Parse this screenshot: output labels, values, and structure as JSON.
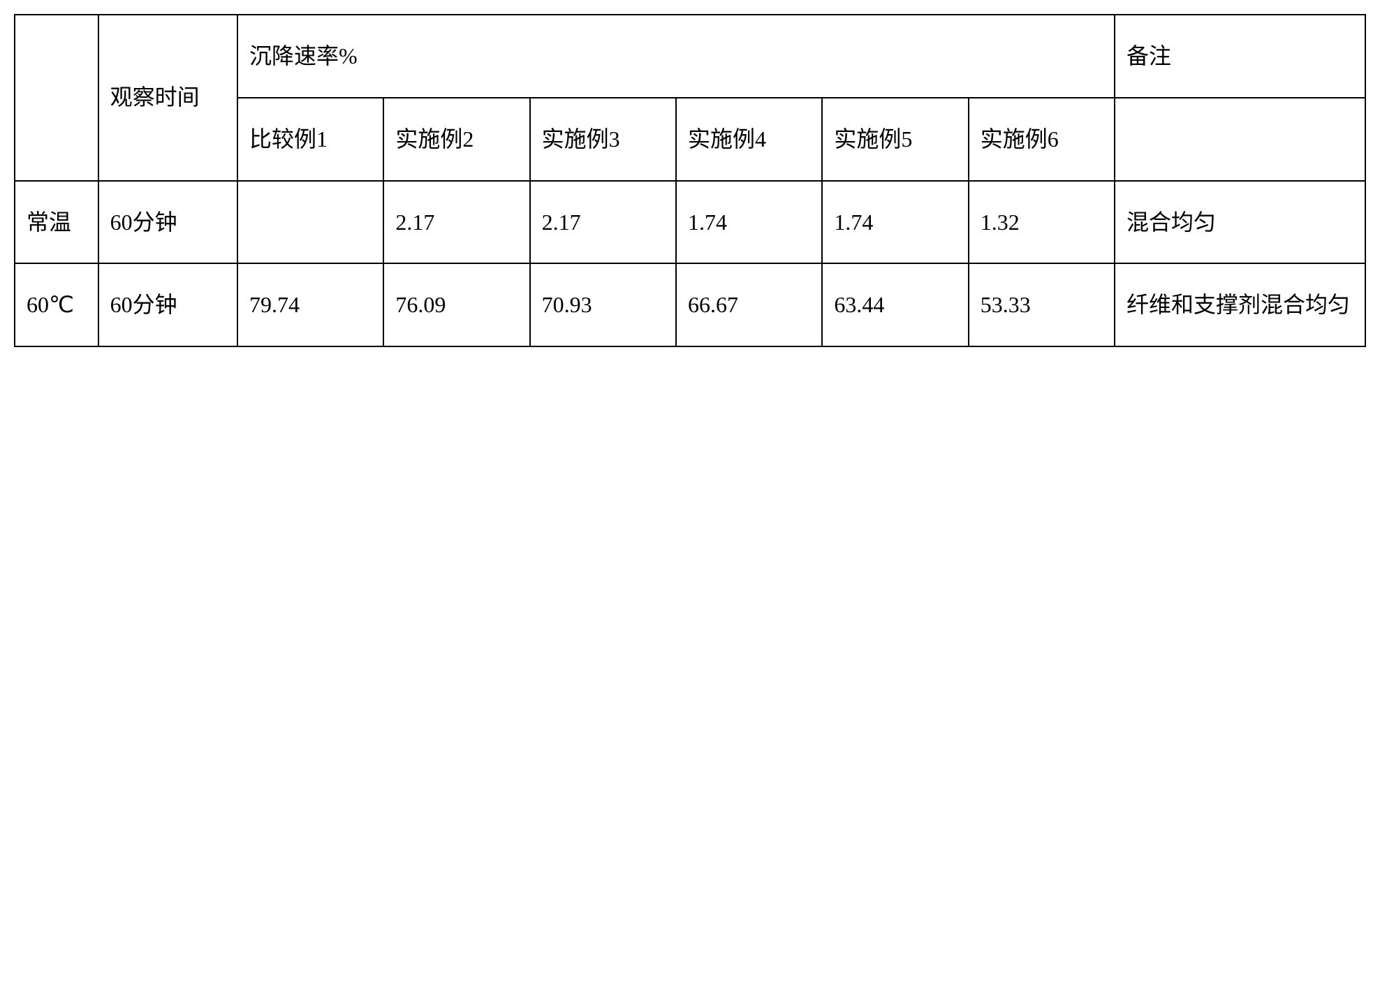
{
  "table": {
    "headers": {
      "blank": "",
      "observation_time": "观察时间",
      "settling_rate": "沉降速率%",
      "notes": "备注",
      "col1": "比较例1",
      "col2": "实施例2",
      "col3": "实施例3",
      "col4": "实施例4",
      "col5": "实施例5",
      "col6": "实施例6"
    },
    "rows": [
      {
        "temp": "常温",
        "time": "60分钟",
        "v1": "",
        "v2": "2.17",
        "v3": "2.17",
        "v4": "1.74",
        "v5": "1.74",
        "v6": "1.32",
        "notes": "混合均匀"
      },
      {
        "temp": "60℃",
        "time": "60分钟",
        "v1": "79.74",
        "v2": "76.09",
        "v3": "70.93",
        "v4": "66.67",
        "v5": "63.44",
        "v6": "53.33",
        "notes": "纤维和支撑剂混合均匀"
      }
    ],
    "styling": {
      "border_color": "#000000",
      "border_width": 2,
      "background_color": "#ffffff",
      "text_color": "#000000",
      "font_size": 32,
      "line_height": 2.4,
      "cell_padding": "20px 16px"
    }
  }
}
